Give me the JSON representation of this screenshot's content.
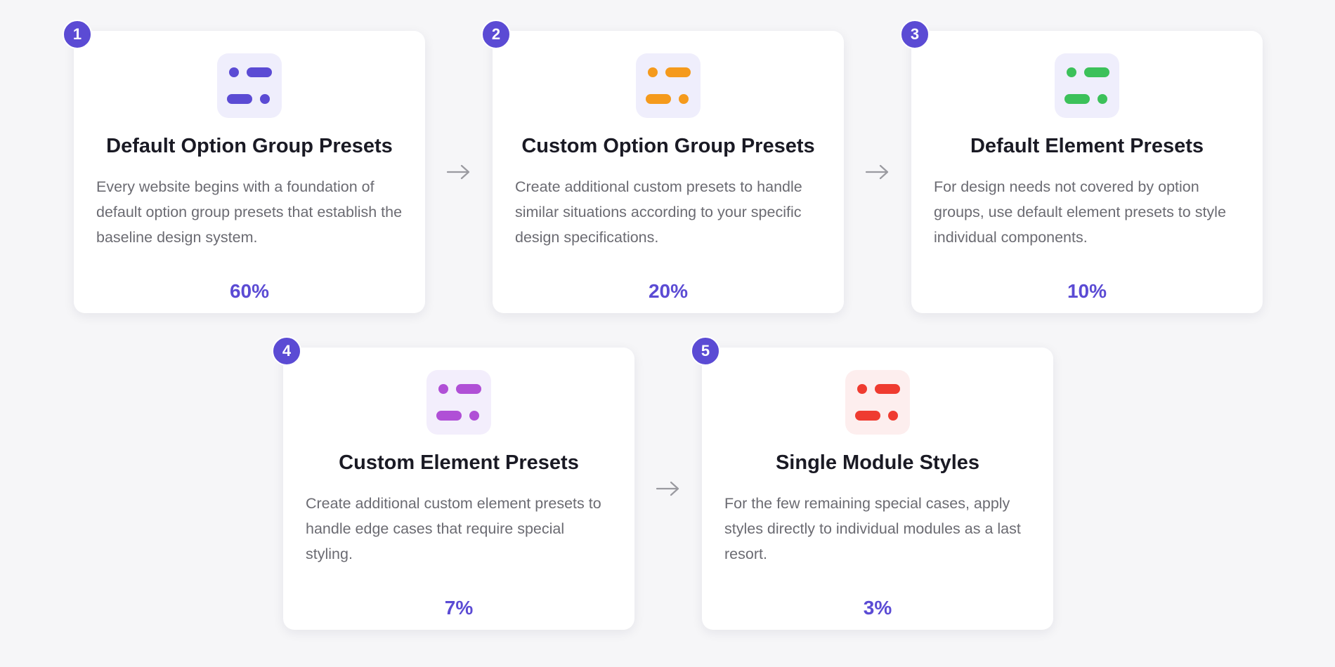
{
  "steps": [
    {
      "number": "1",
      "title": "Default Option Group Presets",
      "description": "Every website begins with a foundation of default option group presets that establish the baseline design system.",
      "value": "60%",
      "icon": "preset-list-icon",
      "icon_color": "#5b4bd4",
      "icon_bg": "#efeefc"
    },
    {
      "number": "2",
      "title": "Custom Option Group Presets",
      "description": "Create additional custom presets to handle similar situations according to your specific design specifications.",
      "value": "20%",
      "icon": "preset-list-icon",
      "icon_color": "#f59a1c",
      "icon_bg": "#efeefc"
    },
    {
      "number": "3",
      "title": "Default Element Presets",
      "description": "For design needs not covered by option groups, use default element presets to style individual components.",
      "value": "10%",
      "icon": "preset-list-icon",
      "icon_color": "#3cc15a",
      "icon_bg": "#efeefc"
    },
    {
      "number": "4",
      "title": "Custom Element Presets",
      "description": "Create additional custom element presets to handle edge cases that require special styling.",
      "value": "7%",
      "icon": "preset-list-icon",
      "icon_color": "#b04fd6",
      "icon_bg": "#f3eefc"
    },
    {
      "number": "5",
      "title": "Single Module Styles",
      "description": "For the few remaining special cases, apply styles directly to individual modules as a last resort.",
      "value": "3%",
      "icon": "preset-list-icon",
      "icon_color": "#ef3b30",
      "icon_bg": "#fdeeee"
    }
  ],
  "connector": {
    "icon": "arrow-right-icon",
    "color": "#9a9aa0"
  },
  "colors": {
    "accent": "#5b4bd4",
    "background": "#f6f6f8",
    "card": "#ffffff"
  }
}
